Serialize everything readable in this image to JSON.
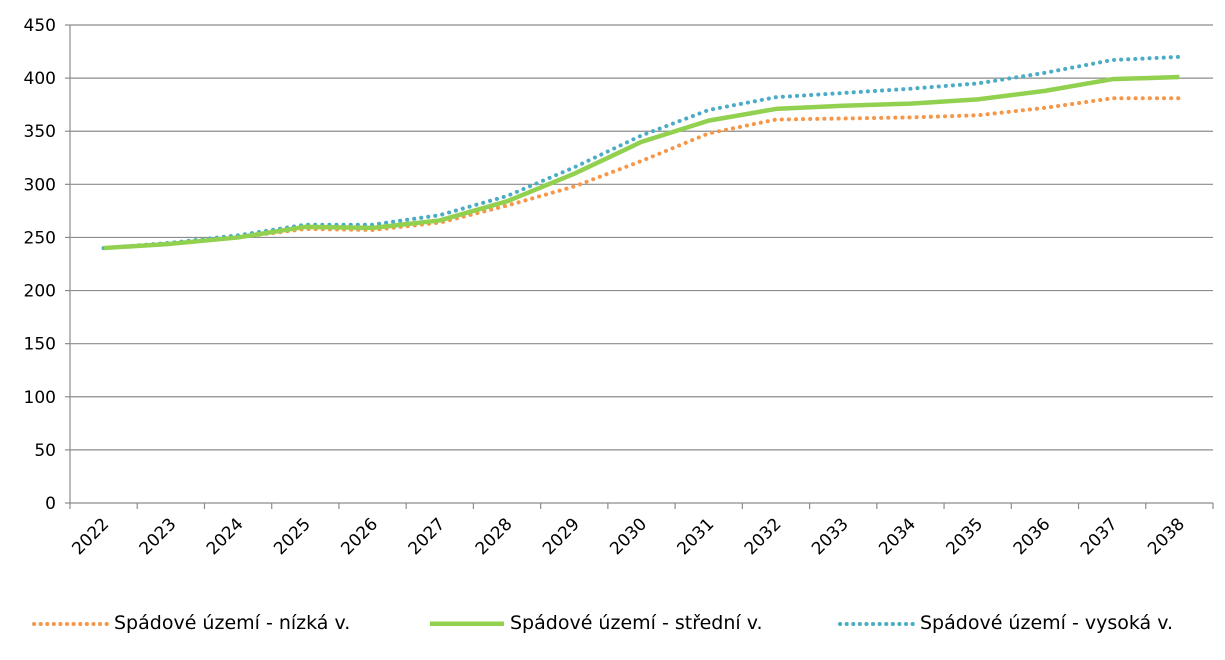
{
  "chart_data": {
    "type": "line",
    "x": [
      "2022",
      "2023",
      "2024",
      "2025",
      "2026",
      "2027",
      "2028",
      "2029",
      "2030",
      "2031",
      "2032",
      "2033",
      "2034",
      "2035",
      "2036",
      "2037",
      "2038"
    ],
    "ylim": [
      0,
      450
    ],
    "yticks": [
      0,
      50,
      100,
      150,
      200,
      250,
      300,
      350,
      400,
      450
    ],
    "grid": "horizontal",
    "legend_position": "bottom",
    "series": [
      {
        "name": "Spádové území - nízká v.",
        "color": "#f79646",
        "style": "dotted",
        "values": [
          240,
          244,
          250,
          258,
          257,
          264,
          280,
          298,
          322,
          348,
          361,
          362,
          363,
          365,
          372,
          381,
          381
        ]
      },
      {
        "name": "Spádové území - střední v.",
        "color": "#92d050",
        "style": "solid",
        "values": [
          240,
          244,
          250,
          260,
          259,
          266,
          284,
          310,
          340,
          360,
          371,
          374,
          376,
          380,
          388,
          399,
          401
        ]
      },
      {
        "name": "Spádové území - vysoká v.",
        "color": "#4bacc6",
        "style": "dotted",
        "values": [
          240,
          245,
          252,
          262,
          262,
          271,
          289,
          316,
          346,
          370,
          382,
          386,
          390,
          395,
          405,
          417,
          420
        ]
      }
    ]
  }
}
